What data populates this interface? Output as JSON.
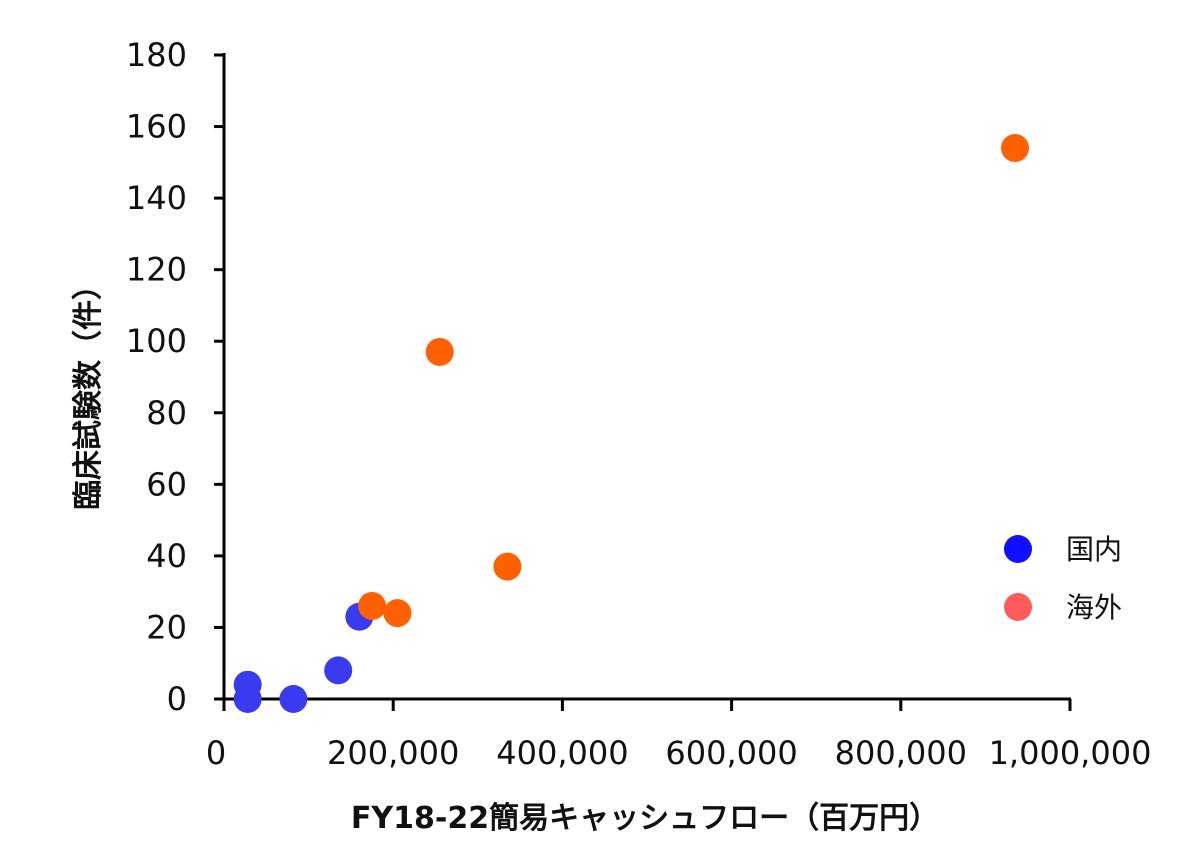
{
  "chart_data": {
    "type": "scatter",
    "xlabel": "FY18-22簡易キャッシュフロー（百万円）",
    "ylabel": "臨床試験数（件）",
    "xlim": [
      0,
      1000000
    ],
    "ylim": [
      0,
      180
    ],
    "x_ticks": [
      0,
      200000,
      400000,
      600000,
      800000,
      1000000
    ],
    "x_tick_labels": [
      "0",
      "200,000",
      "400,000",
      "600,000",
      "800,000",
      "1,000,000"
    ],
    "y_ticks": [
      0,
      20,
      40,
      60,
      80,
      100,
      120,
      140,
      160,
      180
    ],
    "y_tick_labels": [
      "0",
      "20",
      "40",
      "60",
      "80",
      "100",
      "120",
      "140",
      "160",
      "180"
    ],
    "grid": false,
    "legend_position": "right",
    "series": [
      {
        "name": "国内",
        "color": "#3a3af0",
        "points": [
          {
            "x": 28000,
            "y": 4
          },
          {
            "x": 28000,
            "y": 0
          },
          {
            "x": 82000,
            "y": 0
          },
          {
            "x": 135000,
            "y": 8
          },
          {
            "x": 160000,
            "y": 23
          }
        ]
      },
      {
        "name": "海外",
        "color": "#ff6000",
        "points": [
          {
            "x": 175000,
            "y": 26
          },
          {
            "x": 205000,
            "y": 24
          },
          {
            "x": 255000,
            "y": 97
          },
          {
            "x": 335000,
            "y": 37
          },
          {
            "x": 935000,
            "y": 154
          }
        ]
      }
    ],
    "legend": [
      {
        "label": "国内",
        "color": "#1010ff"
      },
      {
        "label": "海外",
        "color": "#ff5b5b"
      }
    ]
  }
}
